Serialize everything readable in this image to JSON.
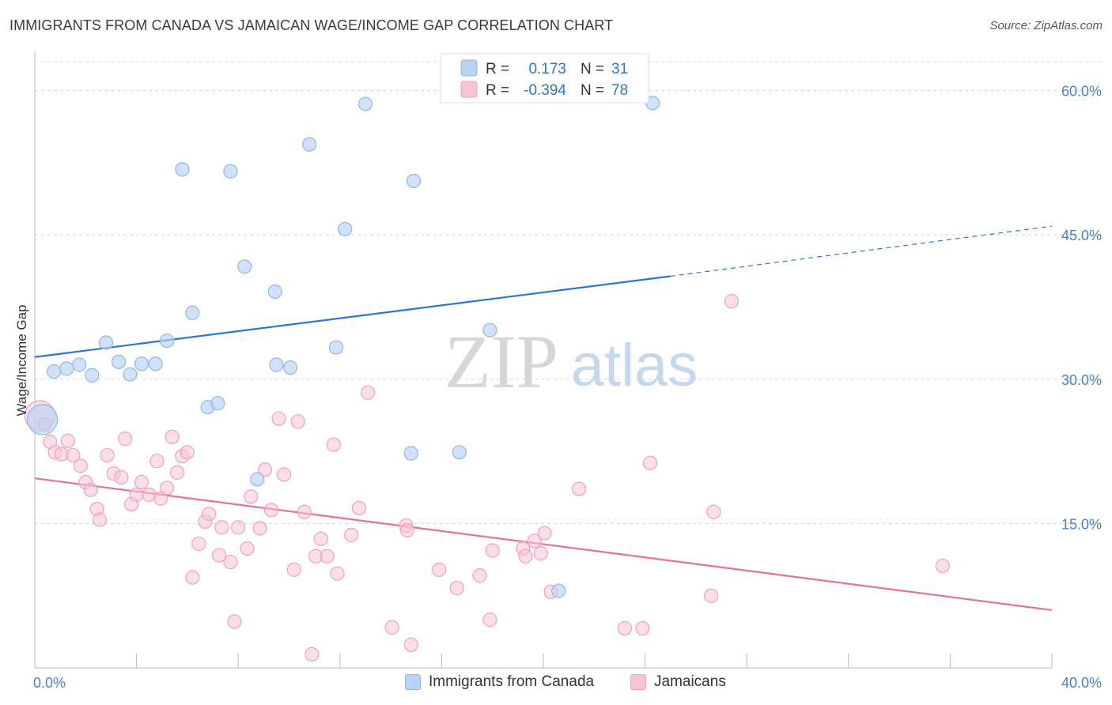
{
  "title": "IMMIGRANTS FROM CANADA VS JAMAICAN WAGE/INCOME GAP CORRELATION CHART",
  "source": "Source: ZipAtlas.com",
  "watermark": {
    "zip": "ZIP",
    "atlas": "atlas"
  },
  "legend_box": {
    "rows": [
      {
        "r_label": "R =",
        "r_value": "0.173",
        "n_label": "N =",
        "n_value": "31"
      },
      {
        "r_label": "R =",
        "r_value": "-0.394",
        "n_label": "N =",
        "n_value": "78"
      }
    ]
  },
  "colors": {
    "canada_fill": "#b8d3f5",
    "canada_stroke": "#8fb7e8",
    "canada_line": "#2f74d0",
    "jamaica_fill": "#f8c5d5",
    "jamaica_stroke": "#f0a0bb",
    "jamaica_line": "#e76f9a",
    "axis_text": "#4a7fd0",
    "grid": "#d8d8d8"
  },
  "chart_data": {
    "type": "scatter",
    "title": "IMMIGRANTS FROM CANADA VS JAMAICAN WAGE/INCOME GAP CORRELATION CHART",
    "xlabel": "",
    "ylabel": "Wage/Income Gap",
    "xlim": [
      0,
      40
    ],
    "ylim": [
      0,
      63
    ],
    "x_tick_labels": [
      "0.0%",
      "40.0%"
    ],
    "y_ticks": [
      15,
      30,
      45,
      60
    ],
    "y_tick_labels": [
      "15.0%",
      "30.0%",
      "45.0%",
      "60.0%"
    ],
    "legend_position": "bottom",
    "series": [
      {
        "name": "Immigrants from Canada",
        "r": 0.173,
        "n": 31,
        "trend": {
          "x0": 0,
          "y0": 32.3,
          "x1": 25,
          "y1": 40.7,
          "dash_to_x": 40,
          "dash_to_y": 45.9
        },
        "points": [
          {
            "x": 0.3,
            "y": 25.8,
            "big": true
          },
          {
            "x": 0.75,
            "y": 30.8
          },
          {
            "x": 1.25,
            "y": 31.1
          },
          {
            "x": 1.75,
            "y": 31.5
          },
          {
            "x": 2.25,
            "y": 30.4
          },
          {
            "x": 2.8,
            "y": 33.8
          },
          {
            "x": 3.3,
            "y": 31.8
          },
          {
            "x": 3.75,
            "y": 30.5
          },
          {
            "x": 4.2,
            "y": 31.6
          },
          {
            "x": 4.75,
            "y": 31.6
          },
          {
            "x": 5.2,
            "y": 34.0
          },
          {
            "x": 5.8,
            "y": 51.8
          },
          {
            "x": 6.2,
            "y": 36.9
          },
          {
            "x": 6.8,
            "y": 27.1
          },
          {
            "x": 7.2,
            "y": 27.5
          },
          {
            "x": 7.7,
            "y": 51.6
          },
          {
            "x": 8.25,
            "y": 41.7
          },
          {
            "x": 8.75,
            "y": 19.6
          },
          {
            "x": 9.45,
            "y": 39.1
          },
          {
            "x": 9.5,
            "y": 31.5
          },
          {
            "x": 10.05,
            "y": 31.2
          },
          {
            "x": 10.8,
            "y": 54.4
          },
          {
            "x": 11.85,
            "y": 33.3
          },
          {
            "x": 12.2,
            "y": 45.6
          },
          {
            "x": 13.0,
            "y": 58.6
          },
          {
            "x": 14.8,
            "y": 22.3
          },
          {
            "x": 14.9,
            "y": 50.6
          },
          {
            "x": 16.7,
            "y": 22.4
          },
          {
            "x": 17.9,
            "y": 35.1
          },
          {
            "x": 20.6,
            "y": 8.0
          },
          {
            "x": 24.3,
            "y": 58.7
          }
        ]
      },
      {
        "name": "Jamaicans",
        "r": -0.394,
        "n": 78,
        "trend": {
          "x0": 0,
          "y0": 19.7,
          "x1": 40,
          "y1": 6.0
        },
        "points": [
          {
            "x": 0.2,
            "y": 26.2,
            "big": true
          },
          {
            "x": 0.4,
            "y": 25.3
          },
          {
            "x": 0.6,
            "y": 23.5
          },
          {
            "x": 0.8,
            "y": 22.4
          },
          {
            "x": 1.05,
            "y": 22.2
          },
          {
            "x": 1.3,
            "y": 23.6
          },
          {
            "x": 1.5,
            "y": 22.1
          },
          {
            "x": 1.8,
            "y": 21.0
          },
          {
            "x": 2.0,
            "y": 19.3
          },
          {
            "x": 2.2,
            "y": 18.5
          },
          {
            "x": 2.45,
            "y": 16.5
          },
          {
            "x": 2.55,
            "y": 15.4
          },
          {
            "x": 2.85,
            "y": 22.1
          },
          {
            "x": 3.1,
            "y": 20.2
          },
          {
            "x": 3.4,
            "y": 19.8
          },
          {
            "x": 3.55,
            "y": 23.8
          },
          {
            "x": 3.8,
            "y": 17.0
          },
          {
            "x": 4.0,
            "y": 18.0
          },
          {
            "x": 4.2,
            "y": 19.3
          },
          {
            "x": 4.5,
            "y": 18.0
          },
          {
            "x": 4.8,
            "y": 21.5
          },
          {
            "x": 4.95,
            "y": 17.6
          },
          {
            "x": 5.2,
            "y": 18.7
          },
          {
            "x": 5.4,
            "y": 24.0
          },
          {
            "x": 5.6,
            "y": 20.3
          },
          {
            "x": 5.8,
            "y": 22.0
          },
          {
            "x": 6.0,
            "y": 22.4
          },
          {
            "x": 6.2,
            "y": 9.4
          },
          {
            "x": 6.45,
            "y": 12.9
          },
          {
            "x": 6.7,
            "y": 15.2
          },
          {
            "x": 6.85,
            "y": 16.0
          },
          {
            "x": 7.25,
            "y": 11.7
          },
          {
            "x": 7.35,
            "y": 14.6
          },
          {
            "x": 7.7,
            "y": 11.0
          },
          {
            "x": 7.85,
            "y": 4.8
          },
          {
            "x": 8.0,
            "y": 14.6
          },
          {
            "x": 8.35,
            "y": 12.4
          },
          {
            "x": 8.5,
            "y": 17.8
          },
          {
            "x": 8.85,
            "y": 14.5
          },
          {
            "x": 9.05,
            "y": 20.6
          },
          {
            "x": 9.3,
            "y": 16.4
          },
          {
            "x": 9.6,
            "y": 25.9
          },
          {
            "x": 9.8,
            "y": 20.1
          },
          {
            "x": 10.2,
            "y": 10.2
          },
          {
            "x": 10.35,
            "y": 25.6
          },
          {
            "x": 10.6,
            "y": 16.2
          },
          {
            "x": 10.9,
            "y": 1.4
          },
          {
            "x": 11.05,
            "y": 11.6
          },
          {
            "x": 11.25,
            "y": 13.4
          },
          {
            "x": 11.5,
            "y": 11.6
          },
          {
            "x": 11.75,
            "y": 23.2
          },
          {
            "x": 11.9,
            "y": 9.8
          },
          {
            "x": 12.45,
            "y": 13.8
          },
          {
            "x": 12.75,
            "y": 16.6
          },
          {
            "x": 13.1,
            "y": 28.6
          },
          {
            "x": 14.05,
            "y": 4.2
          },
          {
            "x": 14.6,
            "y": 14.8
          },
          {
            "x": 14.65,
            "y": 14.3
          },
          {
            "x": 14.8,
            "y": 2.4
          },
          {
            "x": 15.9,
            "y": 10.2
          },
          {
            "x": 16.6,
            "y": 8.3
          },
          {
            "x": 17.5,
            "y": 9.6
          },
          {
            "x": 17.9,
            "y": 5.0
          },
          {
            "x": 18.0,
            "y": 12.2
          },
          {
            "x": 19.2,
            "y": 12.4
          },
          {
            "x": 19.3,
            "y": 11.6
          },
          {
            "x": 19.65,
            "y": 13.2
          },
          {
            "x": 19.9,
            "y": 11.9
          },
          {
            "x": 20.05,
            "y": 14.0
          },
          {
            "x": 20.3,
            "y": 7.9
          },
          {
            "x": 21.4,
            "y": 18.6
          },
          {
            "x": 23.2,
            "y": 4.1
          },
          {
            "x": 23.9,
            "y": 4.1
          },
          {
            "x": 24.2,
            "y": 21.3
          },
          {
            "x": 26.7,
            "y": 16.2
          },
          {
            "x": 26.6,
            "y": 7.5
          },
          {
            "x": 27.4,
            "y": 38.1
          },
          {
            "x": 35.7,
            "y": 10.6
          }
        ]
      }
    ]
  }
}
